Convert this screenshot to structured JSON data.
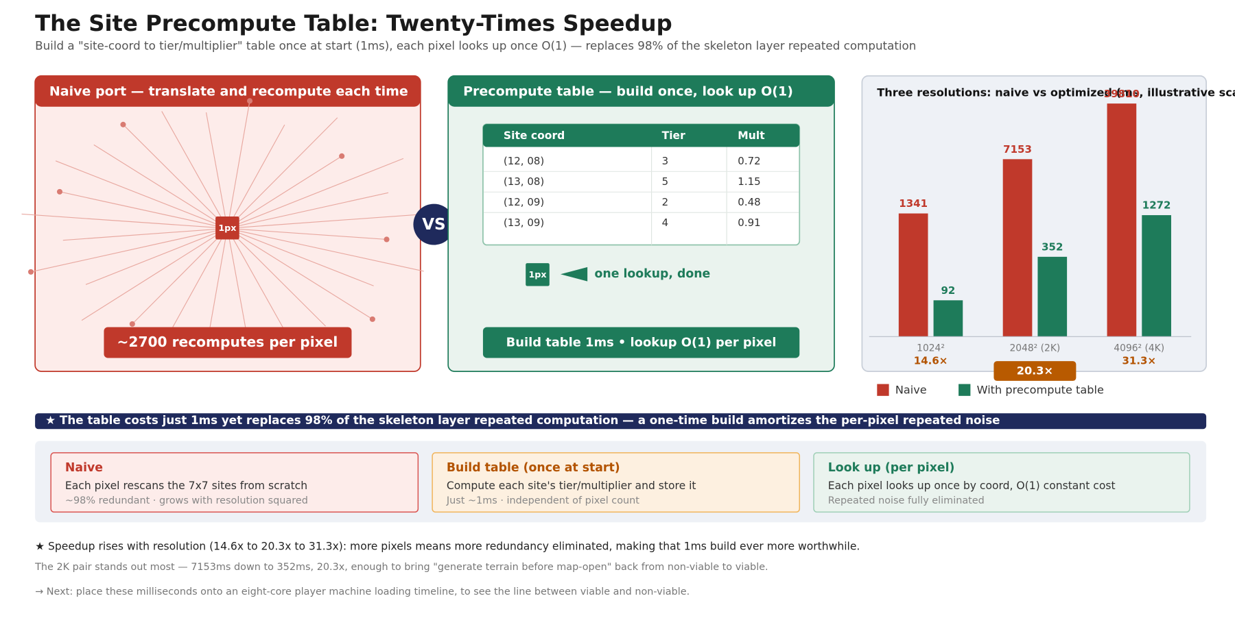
{
  "header": {
    "title": "The Site Precompute Table: Twenty-Times Speedup",
    "subtitle": "Build a \"site-coord to tier/multiplier\" table once at start (1ms), each pixel looks up once O(1) — replaces 98% of the skeleton layer repeated computation"
  },
  "naive_panel": {
    "title": "Naive port — translate and recompute each time",
    "pixel": "1px",
    "badge": "~2700 recomputes per pixel"
  },
  "vs": "VS",
  "table_panel": {
    "title": "Precompute table — build once, look up O(1)",
    "table": {
      "columns": [
        "Site coord",
        "Tier",
        "Mult"
      ],
      "rows": [
        [
          "(12, 08)",
          "3",
          "0.72"
        ],
        [
          "(13, 08)",
          "5",
          "1.15"
        ],
        [
          "(12, 09)",
          "2",
          "0.48"
        ],
        [
          "(13, 09)",
          "4",
          "0.91"
        ]
      ]
    },
    "pixel": "1px",
    "lookup": "one lookup, done",
    "badge": "Build table 1ms • lookup O(1) per pixel"
  },
  "chart_data": {
    "type": "bar",
    "title": "Three resolutions: naive vs optimized (ms, illustrative scale)",
    "categories": [
      "1024²",
      "2048² (2K)",
      "4096² (4K)"
    ],
    "series": [
      {
        "name": "Naive",
        "color": "#c0392b",
        "values": [
          1341,
          7153,
          39810
        ]
      },
      {
        "name": "With precompute table",
        "color": "#1e7b5a",
        "values": [
          92,
          352,
          1272
        ]
      }
    ],
    "annotations": [
      "14.6×",
      "20.3×",
      "31.3×"
    ],
    "highlight": 1,
    "log_scale": true,
    "ylim": [
      30,
      45000
    ],
    "legend": "bottom"
  },
  "banner": "★ The table costs just 1ms yet replaces 98% of the skeleton layer repeated computation — a one-time build amortizes the per-pixel repeated noise",
  "cards": [
    {
      "title": "Naive",
      "line1": "Each pixel rescans the 7x7 sites from scratch",
      "line2": "~98% redundant · grows with resolution squared"
    },
    {
      "title": "Build table (once at start)",
      "line1": "Compute each site's tier/multiplier and store it",
      "line2": "Just ~1ms · independent of pixel count"
    },
    {
      "title": "Look up (per pixel)",
      "line1": "Each pixel looks up once by coord, O(1) constant cost",
      "line2": "Repeated noise fully eliminated"
    }
  ],
  "notes": [
    "★ Speedup rises with resolution (14.6x to 20.3x to 31.3x): more pixels means more redundancy eliminated, making that 1ms build ever more worthwhile.",
    "The 2K pair stands out most — 7153ms down to 352ms, 20.3x, enough to bring \"generate terrain before map-open\" back from non-viable to viable.",
    "→ Next: place these milliseconds onto an eight-core player machine loading timeline, to see the line between viable and non-viable."
  ]
}
